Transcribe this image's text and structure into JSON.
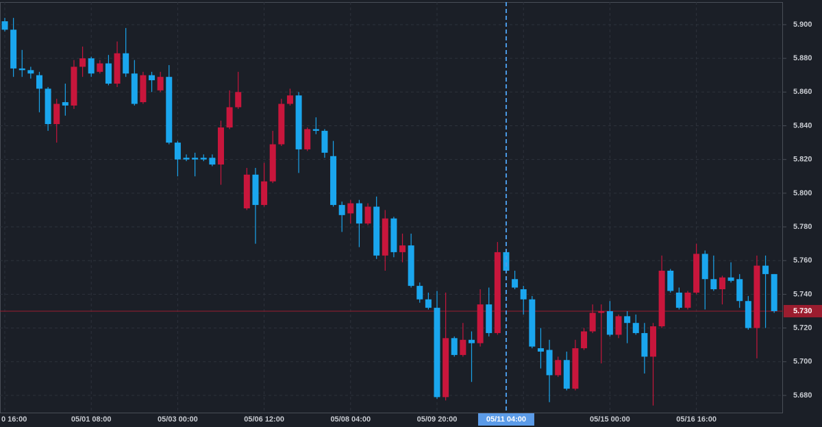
{
  "chart_data": {
    "type": "candlestick",
    "categories": [
      "0 16:00",
      null,
      null,
      null,
      null,
      null,
      null,
      null,
      null,
      null,
      "05/01 08:00",
      null,
      null,
      null,
      null,
      null,
      null,
      null,
      null,
      null,
      "05/03 00:00",
      null,
      null,
      null,
      null,
      null,
      null,
      null,
      null,
      null,
      "05/06 12:00",
      null,
      null,
      null,
      null,
      null,
      null,
      null,
      null,
      null,
      "05/08 04:00",
      null,
      null,
      null,
      null,
      null,
      null,
      null,
      null,
      null,
      "05/09 20:00",
      null,
      null,
      null,
      null,
      null,
      null,
      null,
      "05/11 04:00",
      null,
      null,
      null,
      null,
      null,
      null,
      null,
      null,
      null,
      null,
      null,
      "05/15 00:00",
      null,
      null,
      null,
      null,
      null,
      null,
      null,
      null,
      null,
      "05/16 16:00",
      null,
      null,
      null,
      null,
      null,
      null,
      null,
      null,
      null
    ],
    "open": [
      5.902,
      5.897,
      5.874,
      5.873,
      5.87,
      5.862,
      5.841,
      5.854,
      5.852,
      5.875,
      5.88,
      5.872,
      5.877,
      5.865,
      5.883,
      5.871,
      5.854,
      5.87,
      5.861,
      5.869,
      5.83,
      5.821,
      5.821,
      5.821,
      5.821,
      5.817,
      5.839,
      5.851,
      5.791,
      5.811,
      5.793,
      5.807,
      5.829,
      5.853,
      5.858,
      5.826,
      5.838,
      5.837,
      5.822,
      5.793,
      5.788,
      5.794,
      5.782,
      5.792,
      5.763,
      5.785,
      5.765,
      5.769,
      5.745,
      5.737,
      5.732,
      5.679,
      5.714,
      5.704,
      5.713,
      5.711,
      5.734,
      5.717,
      5.765,
      5.749,
      5.743,
      5.737,
      5.708,
      5.707,
      5.692,
      5.701,
      5.684,
      5.708,
      5.718,
      5.729,
      5.73,
      5.716,
      5.727,
      5.723,
      5.717,
      5.703,
      5.721,
      5.754,
      5.741,
      5.732,
      5.741,
      5.764,
      5.749,
      5.743,
      5.75,
      5.749,
      5.736,
      5.72,
      5.757,
      5.752
    ],
    "high": [
      5.904,
      5.904,
      5.885,
      5.875,
      5.872,
      5.863,
      5.856,
      5.865,
      5.879,
      5.887,
      5.881,
      5.879,
      5.882,
      5.89,
      5.898,
      5.879,
      5.872,
      5.872,
      5.872,
      5.876,
      5.831,
      5.823,
      5.824,
      5.823,
      5.823,
      5.843,
      5.861,
      5.872,
      5.815,
      5.815,
      5.818,
      5.837,
      5.856,
      5.862,
      5.86,
      5.839,
      5.845,
      5.838,
      5.831,
      5.795,
      5.796,
      5.796,
      5.794,
      5.798,
      5.79,
      5.786,
      5.776,
      5.776,
      5.747,
      5.741,
      5.742,
      5.741,
      5.715,
      5.723,
      5.718,
      5.743,
      5.744,
      5.771,
      5.766,
      5.754,
      5.745,
      5.739,
      5.72,
      5.713,
      5.703,
      5.706,
      5.713,
      5.72,
      5.734,
      5.734,
      5.736,
      5.728,
      5.73,
      5.728,
      5.723,
      5.723,
      5.763,
      5.755,
      5.744,
      5.742,
      5.77,
      5.766,
      5.763,
      5.751,
      5.759,
      5.752,
      5.739,
      5.763,
      5.763,
      5.752
    ],
    "low": [
      5.896,
      5.869,
      5.869,
      5.868,
      5.848,
      5.837,
      5.83,
      5.846,
      5.85,
      5.869,
      5.869,
      5.871,
      5.864,
      5.863,
      5.869,
      5.852,
      5.853,
      5.86,
      5.86,
      5.829,
      5.81,
      5.819,
      5.81,
      5.819,
      5.816,
      5.805,
      5.838,
      5.85,
      5.79,
      5.77,
      5.792,
      5.806,
      5.828,
      5.852,
      5.812,
      5.825,
      5.835,
      5.821,
      5.792,
      5.777,
      5.782,
      5.768,
      5.781,
      5.761,
      5.754,
      5.762,
      5.759,
      5.744,
      5.735,
      5.731,
      5.678,
      5.677,
      5.703,
      5.703,
      5.688,
      5.709,
      5.715,
      5.716,
      5.753,
      5.743,
      5.728,
      5.708,
      5.696,
      5.676,
      5.691,
      5.683,
      5.683,
      5.707,
      5.717,
      5.699,
      5.715,
      5.714,
      5.711,
      5.716,
      5.693,
      5.674,
      5.72,
      5.741,
      5.731,
      5.731,
      5.74,
      5.731,
      5.742,
      5.734,
      5.747,
      5.732,
      5.719,
      5.702,
      5.72,
      5.729
    ],
    "close": [
      5.897,
      5.874,
      5.873,
      5.871,
      5.862,
      5.841,
      5.853,
      5.852,
      5.875,
      5.88,
      5.871,
      5.877,
      5.865,
      5.883,
      5.871,
      5.853,
      5.87,
      5.867,
      5.869,
      5.83,
      5.82,
      5.82,
      5.82,
      5.82,
      5.817,
      5.839,
      5.851,
      5.86,
      5.811,
      5.793,
      5.807,
      5.829,
      5.853,
      5.858,
      5.826,
      5.838,
      5.837,
      5.824,
      5.793,
      5.787,
      5.794,
      5.782,
      5.792,
      5.763,
      5.785,
      5.765,
      5.769,
      5.745,
      5.737,
      5.732,
      5.679,
      5.714,
      5.704,
      5.713,
      5.711,
      5.734,
      5.717,
      5.765,
      5.754,
      5.744,
      5.737,
      5.709,
      5.706,
      5.692,
      5.701,
      5.684,
      5.708,
      5.718,
      5.729,
      5.73,
      5.716,
      5.727,
      5.723,
      5.717,
      5.703,
      5.721,
      5.754,
      5.742,
      5.732,
      5.741,
      5.764,
      5.749,
      5.743,
      5.75,
      5.748,
      5.736,
      5.72,
      5.757,
      5.752,
      5.73
    ],
    "up_color": "#c8163c",
    "down_color": "#1aa6ee",
    "ylim": [
      5.6694,
      5.9134
    ],
    "yticks": [
      {
        "value": 5.68,
        "label": "5.680"
      },
      {
        "value": 5.7,
        "label": "5.700"
      },
      {
        "value": 5.72,
        "label": "5.720"
      },
      {
        "value": 5.74,
        "label": "5.740"
      },
      {
        "value": 5.76,
        "label": "5.760"
      },
      {
        "value": 5.78,
        "label": "5.780"
      },
      {
        "value": 5.8,
        "label": "5.800"
      },
      {
        "value": 5.82,
        "label": "5.820"
      },
      {
        "value": 5.84,
        "label": "5.840"
      },
      {
        "value": 5.86,
        "label": "5.860"
      },
      {
        "value": 5.88,
        "label": "5.880"
      },
      {
        "value": 5.9,
        "label": "5.900"
      }
    ],
    "last_price": {
      "value": 5.73,
      "label": "5.730"
    },
    "grid": true
  }
}
